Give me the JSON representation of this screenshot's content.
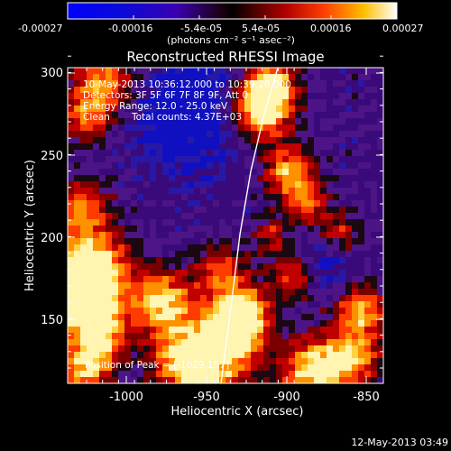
{
  "colorbar": {
    "tick_labels": [
      "-0.00027",
      "-0.00016",
      "-5.4e-05",
      "5.4e-05",
      "0.00016",
      "0.00027"
    ],
    "units": "(photons cm⁻² s⁻¹ asec⁻²)"
  },
  "title": "Reconstructed RHESSI Image",
  "info": {
    "time_range": "10-May-2013 10:36:12.000 to 10:39:28.000",
    "detectors": "Detectors: 3F 5F 6F 7F 8F 9F, Att 0",
    "energy": "Energy Range: 12.0 - 25.0 keV",
    "clean": "Clean",
    "counts": "Total counts: 4.37E+03"
  },
  "peak": "Position of Peak = [-1029,157]",
  "axes": {
    "xlabel": "Heliocentric X (arcsec)",
    "ylabel": "Heliocentric Y (arcsec)",
    "xticks": [
      "-1000",
      "-950",
      "-900",
      "-850"
    ],
    "yticks": [
      "150",
      "200",
      "250",
      "300"
    ]
  },
  "footer_date": "12-May-2013 03:49"
}
